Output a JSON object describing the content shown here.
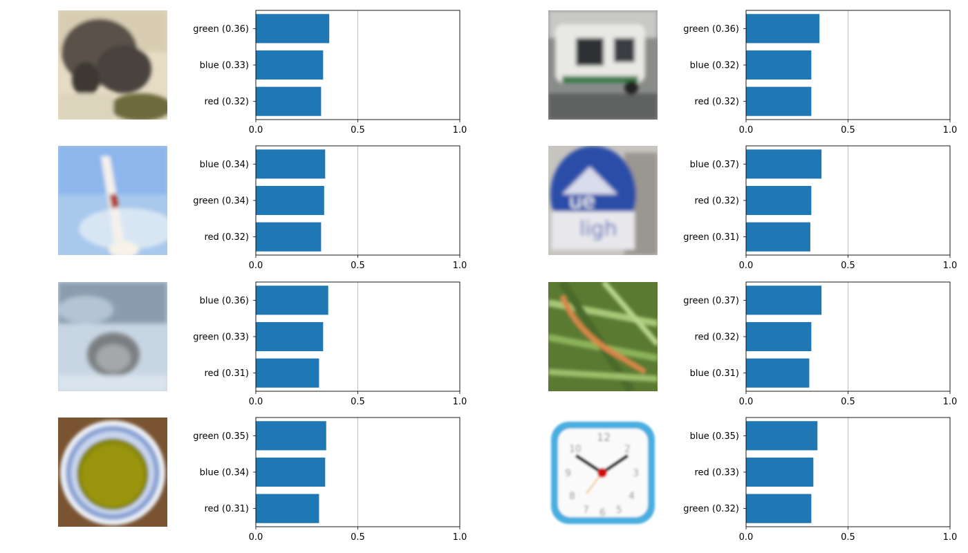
{
  "chart_data": [
    {
      "type": "bar",
      "orientation": "horizontal",
      "categories": [
        "green (0.36)",
        "blue (0.33)",
        "red (0.32)"
      ],
      "values": [
        0.36,
        0.33,
        0.32
      ],
      "xlim": [
        0,
        1
      ],
      "xticks": [
        "0.0",
        "0.5",
        "1.0"
      ],
      "grid": "vertical line at 0.5",
      "color": "#1f77b4",
      "image": "porcupine"
    },
    {
      "type": "bar",
      "orientation": "horizontal",
      "categories": [
        "green (0.36)",
        "blue (0.32)",
        "red (0.32)"
      ],
      "values": [
        0.36,
        0.32,
        0.32
      ],
      "xlim": [
        0,
        1
      ],
      "xticks": [
        "0.0",
        "0.5",
        "1.0"
      ],
      "grid": "vertical line at 0.5",
      "color": "#1f77b4",
      "image": "vehicle"
    },
    {
      "type": "bar",
      "orientation": "horizontal",
      "categories": [
        "blue (0.34)",
        "green (0.34)",
        "red (0.32)"
      ],
      "values": [
        0.34,
        0.335,
        0.32
      ],
      "xlim": [
        0,
        1
      ],
      "xticks": [
        "0.0",
        "0.5",
        "1.0"
      ],
      "grid": "vertical line at 0.5",
      "color": "#1f77b4",
      "image": "rocket"
    },
    {
      "type": "bar",
      "orientation": "horizontal",
      "categories": [
        "blue (0.37)",
        "red (0.32)",
        "green (0.31)"
      ],
      "values": [
        0.37,
        0.32,
        0.315
      ],
      "xlim": [
        0,
        1
      ],
      "xticks": [
        "0.0",
        "0.5",
        "1.0"
      ],
      "grid": "vertical line at 0.5",
      "color": "#1f77b4",
      "image": "can"
    },
    {
      "type": "bar",
      "orientation": "horizontal",
      "categories": [
        "blue (0.36)",
        "green (0.33)",
        "red (0.31)"
      ],
      "values": [
        0.355,
        0.33,
        0.31
      ],
      "xlim": [
        0,
        1
      ],
      "xticks": [
        "0.0",
        "0.5",
        "1.0"
      ],
      "grid": "vertical line at 0.5",
      "color": "#1f77b4",
      "image": "seal"
    },
    {
      "type": "bar",
      "orientation": "horizontal",
      "categories": [
        "green (0.37)",
        "red (0.32)",
        "blue (0.31)"
      ],
      "values": [
        0.37,
        0.32,
        0.31
      ],
      "xlim": [
        0,
        1
      ],
      "xticks": [
        "0.0",
        "0.5",
        "1.0"
      ],
      "grid": "vertical line at 0.5",
      "color": "#1f77b4",
      "image": "caterpillar"
    },
    {
      "type": "bar",
      "orientation": "horizontal",
      "categories": [
        "green (0.35)",
        "blue (0.34)",
        "red (0.31)"
      ],
      "values": [
        0.345,
        0.34,
        0.31
      ],
      "xlim": [
        0,
        1
      ],
      "xticks": [
        "0.0",
        "0.5",
        "1.0"
      ],
      "grid": "vertical line at 0.5",
      "color": "#1f77b4",
      "image": "bowl"
    },
    {
      "type": "bar",
      "orientation": "horizontal",
      "categories": [
        "blue (0.35)",
        "red (0.33)",
        "green (0.32)"
      ],
      "values": [
        0.35,
        0.33,
        0.32
      ],
      "xlim": [
        0,
        1
      ],
      "xticks": [
        "0.0",
        "0.5",
        "1.0"
      ],
      "grid": "vertical line at 0.5",
      "color": "#1f77b4",
      "image": "clock"
    }
  ]
}
